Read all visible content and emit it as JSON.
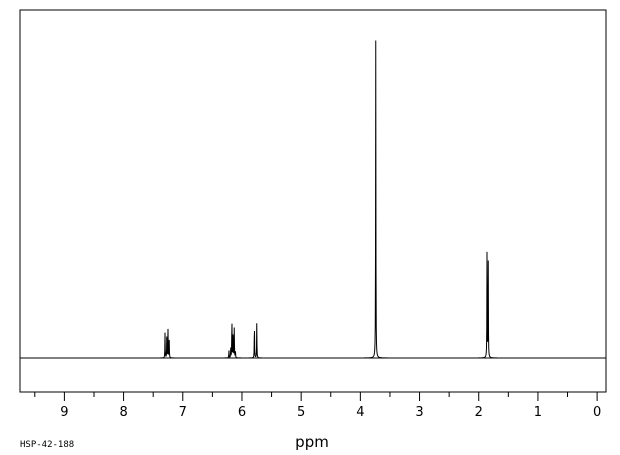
{
  "chart_data": {
    "type": "line",
    "title": "",
    "xlabel": "ppm",
    "ylabel": "",
    "xlim": [
      9.75,
      -0.15
    ],
    "x_reversed": true,
    "ylim": [
      -0.1,
      1.0
    ],
    "grid": false,
    "sample_id": "HSP-42-188",
    "x_ticks": [
      9,
      8,
      7,
      6,
      5,
      4,
      3,
      2,
      1,
      0
    ],
    "x_tick_labels": [
      "9",
      "8",
      "7",
      "6",
      "5",
      "4",
      "3",
      "2",
      "1",
      "0"
    ],
    "series": [
      {
        "peaks": [
          {
            "ppm": 7.3,
            "height": 0.08
          },
          {
            "ppm": 7.27,
            "height": 0.07
          },
          {
            "ppm": 7.25,
            "height": 0.09
          },
          {
            "ppm": 7.23,
            "height": 0.07
          },
          {
            "ppm": 6.22,
            "height": 0.025
          },
          {
            "ppm": 6.19,
            "height": 0.03
          },
          {
            "ppm": 6.17,
            "height": 0.138
          },
          {
            "ppm": 6.15,
            "height": 0.09
          },
          {
            "ppm": 6.13,
            "height": 0.095
          },
          {
            "ppm": 6.11,
            "height": 0.02
          },
          {
            "ppm": 5.79,
            "height": 0.115
          },
          {
            "ppm": 5.75,
            "height": 0.11
          },
          {
            "ppm": 3.74,
            "height": 1.0
          },
          {
            "ppm": 1.86,
            "height": 0.335
          },
          {
            "ppm": 1.84,
            "height": 0.32
          }
        ]
      }
    ]
  }
}
